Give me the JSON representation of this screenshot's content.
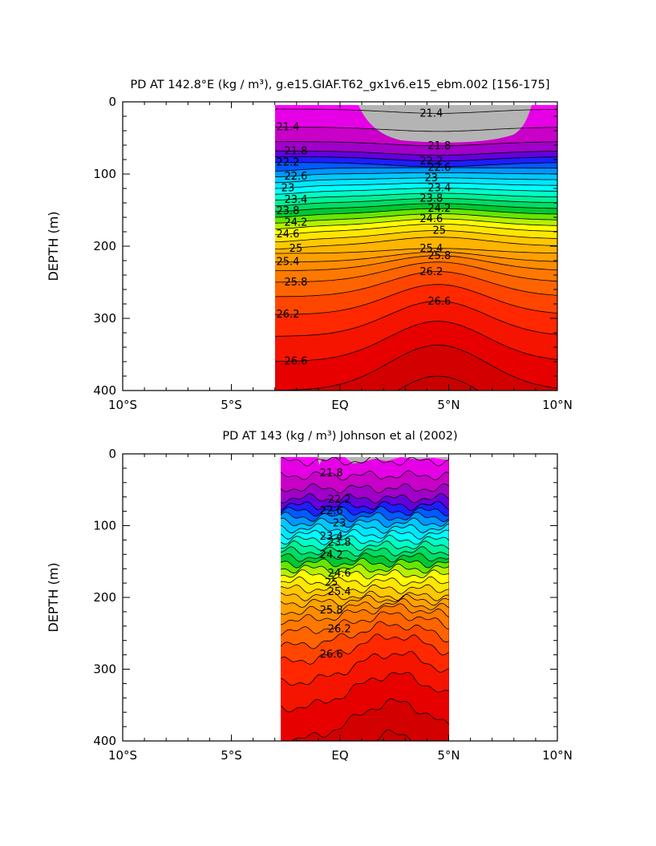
{
  "chart_data": [
    {
      "type": "heatmap",
      "title": "PD AT 142.8°E (kg / m³), g.e15.GIAF.T62_gx1v6.e15_ebm.002 [156-175]",
      "ylabel": "DEPTH (m)",
      "xlabel": "",
      "x_ticks": [
        "10°S",
        "5°S",
        "EQ",
        "5°N",
        "10°N"
      ],
      "y_ticks": [
        "0",
        "100",
        "200",
        "300",
        "400"
      ],
      "xlim": [
        -10,
        10
      ],
      "ylim": [
        400,
        0
      ],
      "data_extent_lat": [
        -3,
        10
      ],
      "contour_labels": [
        "21.4",
        "21.8",
        "22.2",
        "22.6",
        "23",
        "23.4",
        "23.8",
        "24.2",
        "24.6",
        "25",
        "25.4",
        "25.8",
        "26.2",
        "26.6"
      ],
      "contour_labels_right": [
        "21.4",
        "21.8",
        "22.2",
        "22.6",
        "23",
        "23.4",
        "23.8",
        "24.2",
        "24.6",
        "25",
        "25.4",
        "25.8",
        "26.2",
        "26.6"
      ]
    },
    {
      "type": "heatmap",
      "title": "PD AT 143 (kg / m³) Johnson et al (2002)",
      "ylabel": "DEPTH (m)",
      "xlabel": "",
      "x_ticks": [
        "10°S",
        "5°S",
        "EQ",
        "5°N",
        "10°N"
      ],
      "y_ticks": [
        "0",
        "100",
        "200",
        "300",
        "400"
      ],
      "xlim": [
        -10,
        10
      ],
      "ylim": [
        400,
        0
      ],
      "data_extent_lat": [
        -2.8,
        5
      ],
      "contour_labels": [
        "21.8",
        "22.2",
        "22.6",
        "23",
        "23.4",
        "23.8",
        "24.2",
        "24.6",
        "25",
        "25.4",
        "25.8",
        "26.2",
        "26.6"
      ]
    }
  ],
  "colors": {
    "land_gray": "#b4b4b4",
    "ramp": [
      "#ff00ff",
      "#e600e6",
      "#c800c8",
      "#a000c8",
      "#6400dc",
      "#1e1eff",
      "#005aff",
      "#0096ff",
      "#00c8ff",
      "#00e6ff",
      "#00ffff",
      "#00ffc8",
      "#00f096",
      "#00dc64",
      "#00c832",
      "#64e600",
      "#b4f000",
      "#ffff00",
      "#ffe600",
      "#ffc800",
      "#ffb400",
      "#ffa000",
      "#ff8c00",
      "#ff7800",
      "#ff6400",
      "#ff4600",
      "#ff2800",
      "#f51400",
      "#e60000",
      "#d20000",
      "#c80000"
    ]
  }
}
